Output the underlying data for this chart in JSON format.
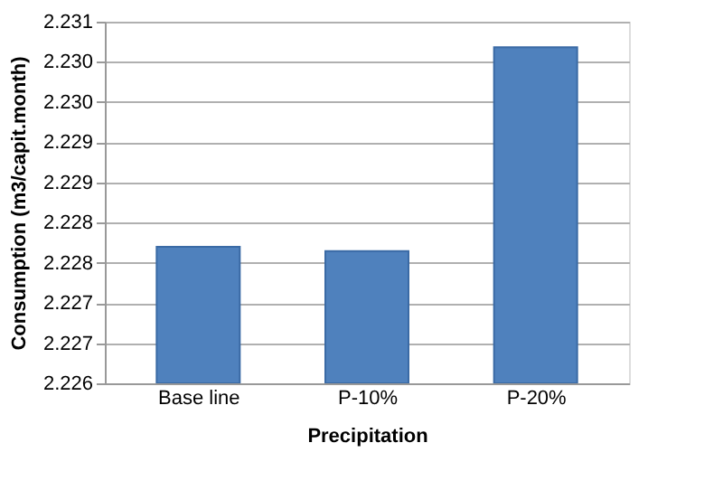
{
  "chart_data": {
    "type": "bar",
    "xlabel": "Precipitation",
    "ylabel": "Consumption (m3/capit.month)",
    "categories": [
      "Base line",
      "P-10%",
      "P-20%"
    ],
    "values": [
      2.22787,
      2.22781,
      2.2306
    ],
    "color": "#4f81bd",
    "ylim": [
      2.226,
      2.23095
    ],
    "yticks": [
      {
        "value": 2.226,
        "label": "2.226"
      },
      {
        "value": 2.22655,
        "label": "2.227"
      },
      {
        "value": 2.2271,
        "label": "2.227"
      },
      {
        "value": 2.22765,
        "label": "2.228"
      },
      {
        "value": 2.2282,
        "label": "2.228"
      },
      {
        "value": 2.22875,
        "label": "2.229"
      },
      {
        "value": 2.2293,
        "label": "2.229"
      },
      {
        "value": 2.22985,
        "label": "2.230"
      },
      {
        "value": 2.2304,
        "label": "2.230"
      },
      {
        "value": 2.23095,
        "label": "2.231"
      }
    ],
    "grid": "y"
  }
}
